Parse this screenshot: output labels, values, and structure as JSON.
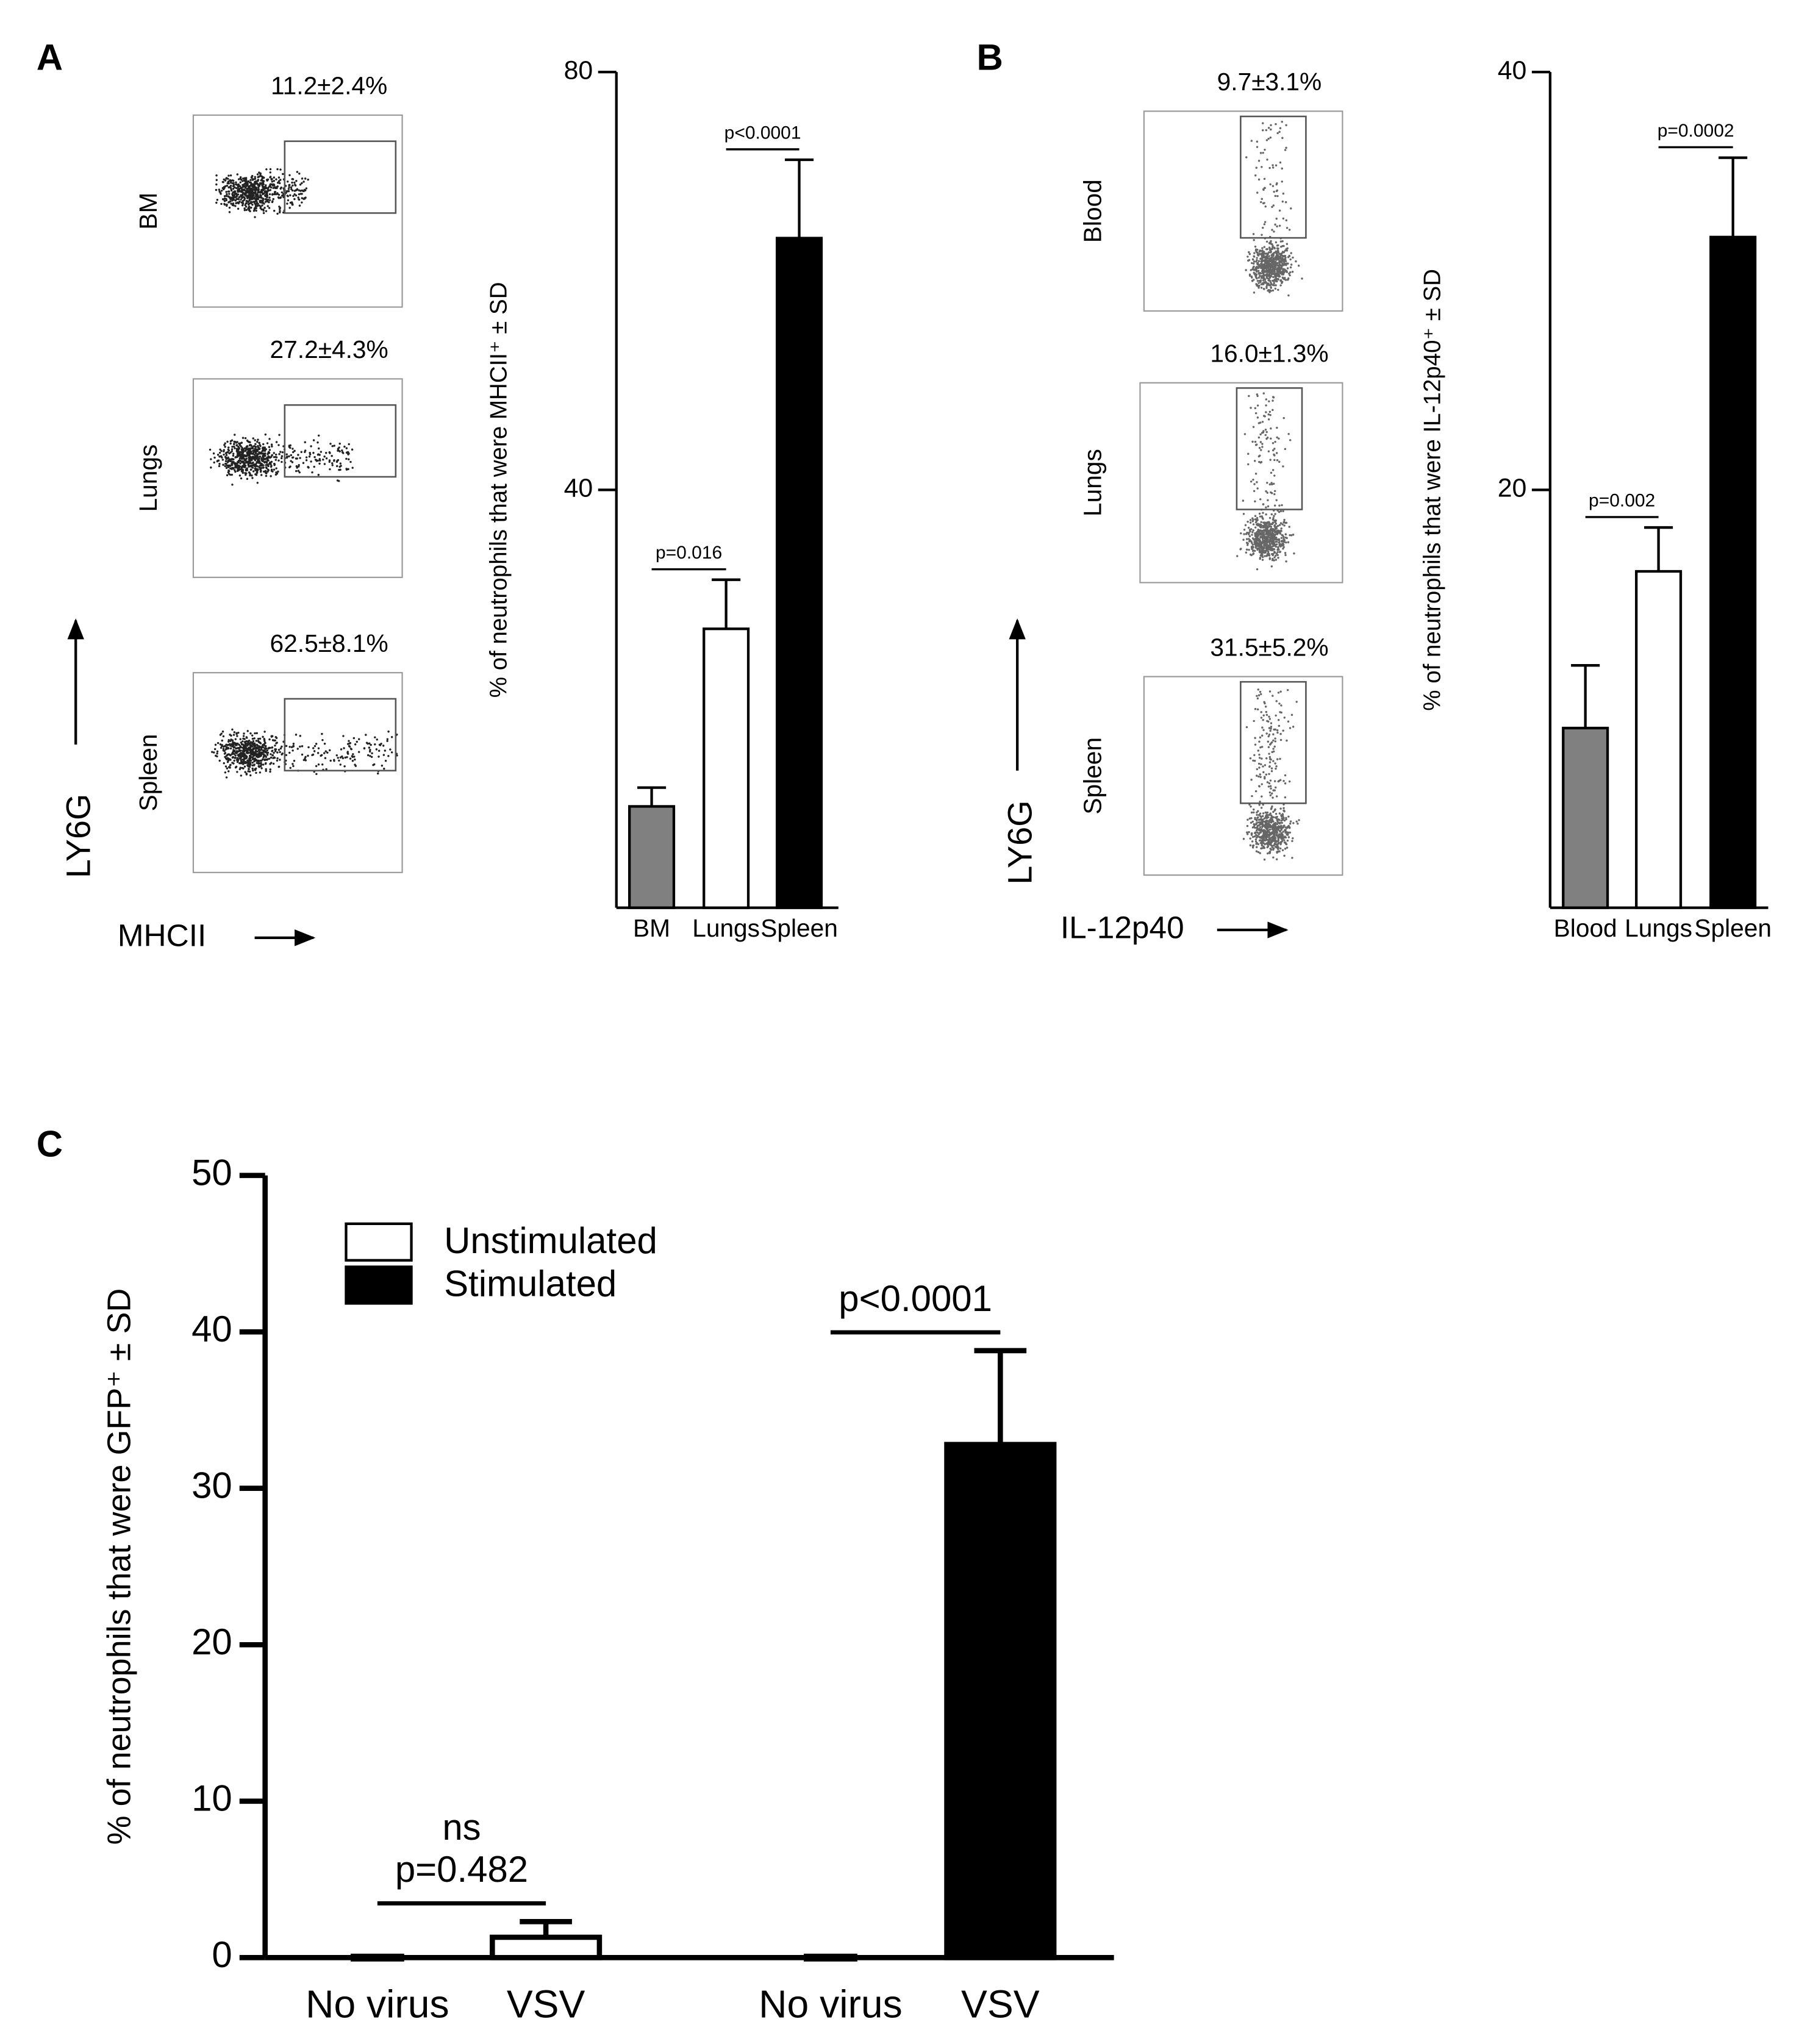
{
  "panel_labels": [
    "A",
    "B",
    "C"
  ],
  "flow_plots": [
    {
      "x_label": "MHCII",
      "y_label": "LY6G",
      "plots": [
        {
          "name": "BM",
          "gate_percent": "11.2±2.4%"
        },
        {
          "name": "Lungs",
          "gate_percent": "27.2±4.3%"
        },
        {
          "name": "Spleen",
          "gate_percent": "62.5±8.1%"
        }
      ]
    },
    {
      "x_label": "IL-12p40",
      "y_label": "LY6G",
      "plots": [
        {
          "name": "Blood",
          "gate_percent": "9.7±3.1%"
        },
        {
          "name": "Lungs",
          "gate_percent": "16.0±1.3%"
        },
        {
          "name": "Spleen",
          "gate_percent": "31.5±5.2%"
        }
      ]
    }
  ],
  "chart_data": [
    {
      "type": "bar",
      "y_label": "% of neutrophils that were MHCII⁺ ± SD",
      "categories": [
        "BM",
        "Lungs",
        "Spleen"
      ],
      "values": [
        9.7,
        26.7,
        64.1
      ],
      "errors": [
        1.8,
        4.7,
        7.5
      ],
      "colors": [
        "#808080",
        "#ffffff",
        "#000000"
      ],
      "ylim": [
        0,
        80
      ],
      "yticks": [
        40,
        80
      ],
      "annotations": [
        [
          "p=0.016"
        ],
        [
          "p<0.0001"
        ]
      ]
    },
    {
      "type": "bar",
      "y_label": "% of neutrophils that were IL-12p40⁺ ± SD",
      "categories": [
        "Blood",
        "Lungs",
        "Spleen"
      ],
      "values": [
        8.6,
        16.1,
        32.1
      ],
      "errors": [
        3.0,
        2.1,
        3.8
      ],
      "colors": [
        "#808080",
        "#ffffff",
        "#000000"
      ],
      "ylim": [
        0,
        40
      ],
      "yticks": [
        20,
        40
      ],
      "annotations": [
        [
          "p=0.002"
        ],
        [
          "p=0.0002"
        ]
      ]
    },
    {
      "type": "bar",
      "y_label": "% of neutrophils that were GFP⁺ ± SD",
      "categories": [
        "No virus",
        "VSV",
        "No virus",
        "VSV"
      ],
      "series": [
        {
          "name": "Unstimulated",
          "color": "#ffffff",
          "values": [
            0,
            1.3,
            null,
            null
          ],
          "errors": [
            0,
            1.0,
            null,
            null
          ]
        },
        {
          "name": "Stimulated",
          "color": "#000000",
          "values": [
            null,
            null,
            0,
            32.8
          ],
          "errors": [
            null,
            null,
            0,
            6.0
          ]
        }
      ],
      "ylim": [
        0,
        50
      ],
      "yticks": [
        0,
        10,
        20,
        30,
        40,
        50
      ],
      "legend": "upper left",
      "annotations": [
        [
          "ns",
          "p=0.482"
        ],
        [
          "p<0.0001"
        ]
      ]
    }
  ]
}
